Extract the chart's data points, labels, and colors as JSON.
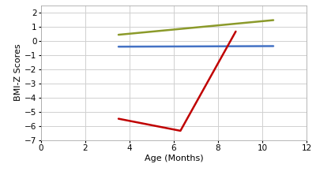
{
  "lines": [
    {
      "x": [
        3.5,
        10.5
      ],
      "y": [
        0.42,
        1.45
      ],
      "color": "#8b9a2a",
      "linewidth": 1.8
    },
    {
      "x": [
        3.5,
        10.5
      ],
      "y": [
        -0.42,
        -0.38
      ],
      "color": "#4472c4",
      "linewidth": 1.8
    },
    {
      "x": [
        3.5,
        6.3,
        8.8
      ],
      "y": [
        -5.5,
        -6.35,
        0.65
      ],
      "color": "#c00000",
      "linewidth": 1.8
    }
  ],
  "xlim": [
    0,
    12
  ],
  "ylim": [
    -7,
    2.5
  ],
  "xticks": [
    0,
    2,
    4,
    6,
    8,
    10,
    12
  ],
  "yticks": [
    -7,
    -6,
    -5,
    -4,
    -3,
    -2,
    -1,
    0,
    1,
    2
  ],
  "xlabel": "Age (Months)",
  "ylabel": "BMI-Z Scores",
  "background_color": "#ffffff",
  "grid_color": "#d0d0d0",
  "axis_label_fontsize": 8,
  "tick_fontsize": 7.5
}
